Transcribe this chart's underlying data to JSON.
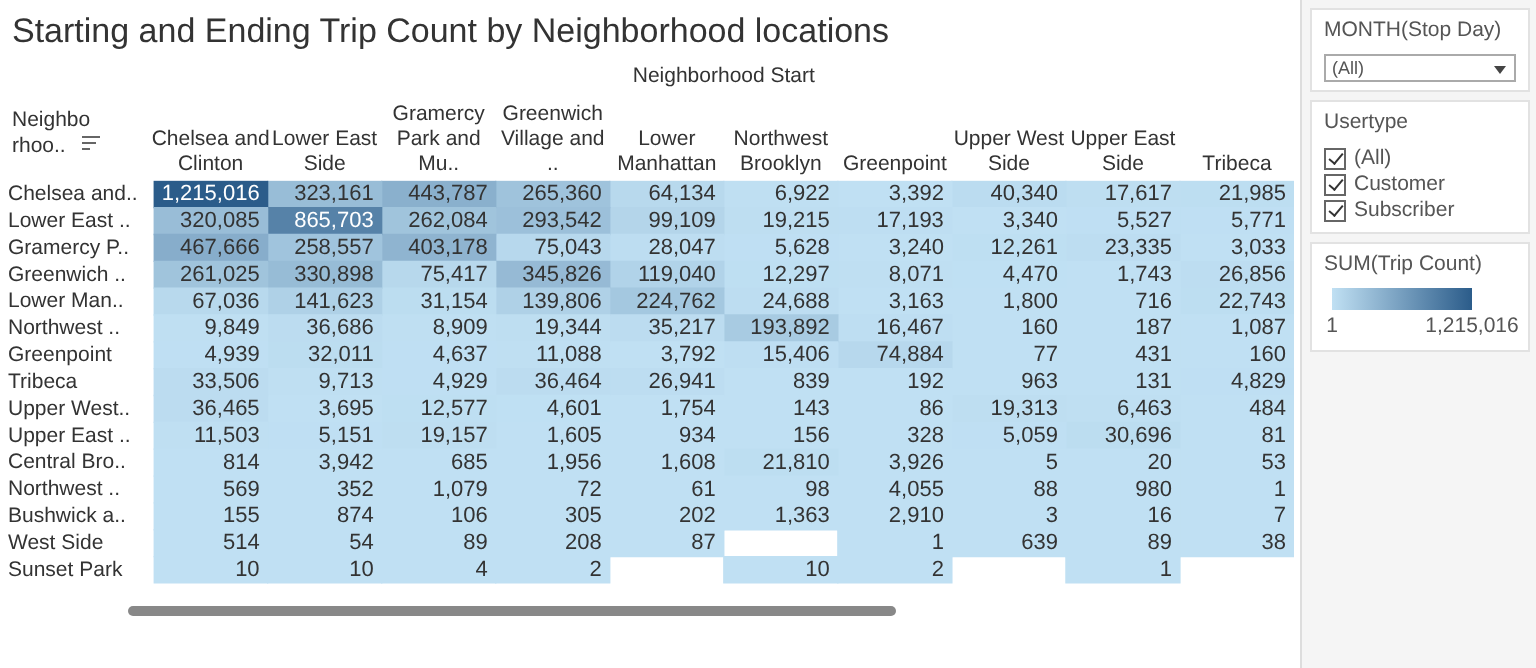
{
  "chart_data": {
    "type": "heatmap",
    "title": "Starting and Ending Trip Count by Neighborhood locations",
    "xlabel": "Neighborhood Start",
    "ylabel": "Neighborhoo..",
    "clabel": "SUM(Trip Count)",
    "categories": [
      "Chelsea and Clinton",
      "Lower East Side",
      "Gramercy Park and Mu..",
      "Greenwich Village and ..",
      "Lower Manhattan",
      "Northwest Brooklyn",
      "Greenpoint",
      "Upper West Side",
      "Upper East Side",
      "Tribeca"
    ],
    "y_categories": [
      "Chelsea and..",
      "Lower East ..",
      "Gramercy P..",
      "Greenwich ..",
      "Lower Man..",
      "Northwest ..",
      "Greenpoint",
      "Tribeca",
      "Upper West..",
      "Upper East ..",
      "Central Bro..",
      "Northwest ..",
      "Bushwick a..",
      "West Side",
      "Sunset Park"
    ],
    "cells": [
      [
        1215016,
        323161,
        443787,
        265360,
        64134,
        6922,
        3392,
        40340,
        17617,
        21985
      ],
      [
        320085,
        865703,
        262084,
        293542,
        99109,
        19215,
        17193,
        3340,
        5527,
        5771
      ],
      [
        467666,
        258557,
        403178,
        75043,
        28047,
        5628,
        3240,
        12261,
        23335,
        3033
      ],
      [
        261025,
        330898,
        75417,
        345826,
        119040,
        12297,
        8071,
        4470,
        1743,
        26856
      ],
      [
        67036,
        141623,
        31154,
        139806,
        224762,
        24688,
        3163,
        1800,
        716,
        22743
      ],
      [
        9849,
        36686,
        8909,
        19344,
        35217,
        193892,
        16467,
        160,
        187,
        1087
      ],
      [
        4939,
        32011,
        4637,
        11088,
        3792,
        15406,
        74884,
        77,
        431,
        160
      ],
      [
        33506,
        9713,
        4929,
        36464,
        26941,
        839,
        192,
        963,
        131,
        4829
      ],
      [
        36465,
        3695,
        12577,
        4601,
        1754,
        143,
        86,
        19313,
        6463,
        484
      ],
      [
        11503,
        5151,
        19157,
        1605,
        934,
        156,
        328,
        5059,
        30696,
        81
      ],
      [
        814,
        3942,
        685,
        1956,
        1608,
        21810,
        3926,
        5,
        20,
        53
      ],
      [
        569,
        352,
        1079,
        72,
        61,
        98,
        4055,
        88,
        980,
        1
      ],
      [
        155,
        874,
        106,
        305,
        202,
        1363,
        2910,
        3,
        16,
        7
      ],
      [
        514,
        54,
        89,
        208,
        87,
        null,
        1,
        639,
        89,
        38
      ],
      [
        10,
        10,
        4,
        2,
        null,
        10,
        2,
        null,
        1,
        null
      ]
    ],
    "clim": [
      1,
      1215016
    ],
    "cticks": [
      1,
      {
        "value": 1215016,
        "label": "1,215,016"
      }
    ],
    "cell_labels": [
      [
        "1,215,016",
        "323,161",
        "443,787",
        "265,360",
        "64,134",
        "6,922",
        "3,392",
        "40,340",
        "17,617",
        "21,985"
      ],
      [
        "320,085",
        "865,703",
        "262,084",
        "293,542",
        "99,109",
        "19,215",
        "17,193",
        "3,340",
        "5,527",
        "5,771"
      ],
      [
        "467,666",
        "258,557",
        "403,178",
        "75,043",
        "28,047",
        "5,628",
        "3,240",
        "12,261",
        "23,335",
        "3,033"
      ],
      [
        "261,025",
        "330,898",
        "75,417",
        "345,826",
        "119,040",
        "12,297",
        "8,071",
        "4,470",
        "1,743",
        "26,856"
      ],
      [
        "67,036",
        "141,623",
        "31,154",
        "139,806",
        "224,762",
        "24,688",
        "3,163",
        "1,800",
        "716",
        "22,743"
      ],
      [
        "9,849",
        "36,686",
        "8,909",
        "19,344",
        "35,217",
        "193,892",
        "16,467",
        "160",
        "187",
        "1,087"
      ],
      [
        "4,939",
        "32,011",
        "4,637",
        "11,088",
        "3,792",
        "15,406",
        "74,884",
        "77",
        "431",
        "160"
      ],
      [
        "33,506",
        "9,713",
        "4,929",
        "36,464",
        "26,941",
        "839",
        "192",
        "963",
        "131",
        "4,829"
      ],
      [
        "36,465",
        "3,695",
        "12,577",
        "4,601",
        "1,754",
        "143",
        "86",
        "19,313",
        "6,463",
        "484"
      ],
      [
        "11,503",
        "5,151",
        "19,157",
        "1,605",
        "934",
        "156",
        "328",
        "5,059",
        "30,696",
        "81"
      ],
      [
        "814",
        "3,942",
        "685",
        "1,956",
        "1,608",
        "21,810",
        "3,926",
        "5",
        "20",
        "53"
      ],
      [
        "569",
        "352",
        "1,079",
        "72",
        "61",
        "98",
        "4,055",
        "88",
        "980",
        "1"
      ],
      [
        "155",
        "874",
        "106",
        "305",
        "202",
        "1,363",
        "2,910",
        "3",
        "16",
        "7"
      ],
      [
        "514",
        "54",
        "89",
        "208",
        "87",
        null,
        "1",
        "639",
        "89",
        "38"
      ],
      [
        "10",
        "10",
        "4",
        "2",
        null,
        "10",
        "2",
        null,
        "1",
        null
      ]
    ],
    "annotations": [
      "MONTH(Stop Day)",
      "(All)",
      "Usertype",
      "(All)",
      "Customer",
      "Subscriber"
    ]
  }
}
